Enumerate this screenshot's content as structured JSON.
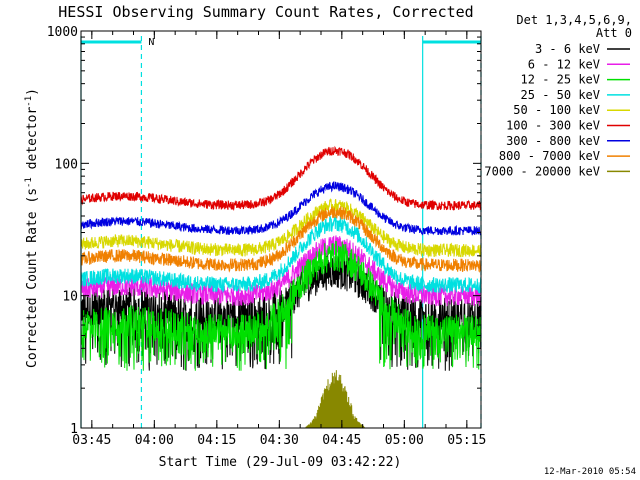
{
  "chart_data": {
    "type": "line",
    "title": "HESSI Observing Summary Count Rates, Corrected",
    "xlabel": "Start Time (29-Jul-09 03:42:22)",
    "ylabel_main": "Corrected Count Rate (s",
    "ylabel_sup1": "-1",
    "ylabel_mid": " detector",
    "ylabel_sup2": "-1",
    "ylabel_end": ")",
    "yscale": "log",
    "ylim": [
      1,
      1000
    ],
    "xlim_minutes": [
      0,
      96
    ],
    "x_ticks": [
      {
        "label": "03:45",
        "minute": 2.6
      },
      {
        "label": "04:00",
        "minute": 17.6
      },
      {
        "label": "04:15",
        "minute": 32.6
      },
      {
        "label": "04:30",
        "minute": 47.6
      },
      {
        "label": "04:45",
        "minute": 62.6
      },
      {
        "label": "05:00",
        "minute": 77.6
      },
      {
        "label": "05:15",
        "minute": 92.6
      }
    ],
    "y_ticks": [
      {
        "label": "1",
        "value": 1
      },
      {
        "label": "10",
        "value": 10
      },
      {
        "label": "100",
        "value": 100
      },
      {
        "label": "1000",
        "value": 1000
      }
    ],
    "legend": {
      "header_line1": "Det 1,3,4,5,6,9,",
      "header_line2": "Att 0",
      "placement": "right"
    },
    "series": [
      {
        "name": "3 - 6 keV",
        "color": "#000000",
        "base": 7.2,
        "peak": 15.5,
        "noise": 0.14,
        "lowClip": 4.5
      },
      {
        "name": "6 - 12 keV",
        "color": "#e81ee8",
        "base": 10.0,
        "peak": 24.0,
        "noise": 0.08
      },
      {
        "name": "12 - 25 keV",
        "color": "#00e000",
        "base": 5.5,
        "peak": 20.0,
        "noise": 0.12,
        "lowClip": 4.5
      },
      {
        "name": "25 - 50 keV",
        "color": "#00e0e0",
        "base": 12.0,
        "peak": 35.0,
        "noise": 0.06
      },
      {
        "name": "50 - 100 keV",
        "color": "#d8d800",
        "base": 22.0,
        "peak": 48.0,
        "noise": 0.05
      },
      {
        "name": "100 - 300 keV",
        "color": "#e00000",
        "base": 48.0,
        "peak": 125.0,
        "noise": 0.035
      },
      {
        "name": "300 - 800 keV",
        "color": "#0000e0",
        "base": 31.0,
        "peak": 67.0,
        "noise": 0.035
      },
      {
        "name": "800 - 7000 keV",
        "color": "#f08000",
        "base": 17.0,
        "peak": 43.0,
        "noise": 0.05
      },
      {
        "name": "7000 - 20000 keV",
        "color": "#888800",
        "base": 1.0,
        "peak": 2.6,
        "noise": 0.0
      }
    ],
    "night_intervals_minutes": [
      [
        0,
        14.5
      ],
      [
        82,
        96
      ]
    ],
    "saa_intervals_minutes": [],
    "night_flag": "N",
    "annotation_color": "#00e0e0",
    "footer_date": "12-Mar-2010 05:54"
  }
}
